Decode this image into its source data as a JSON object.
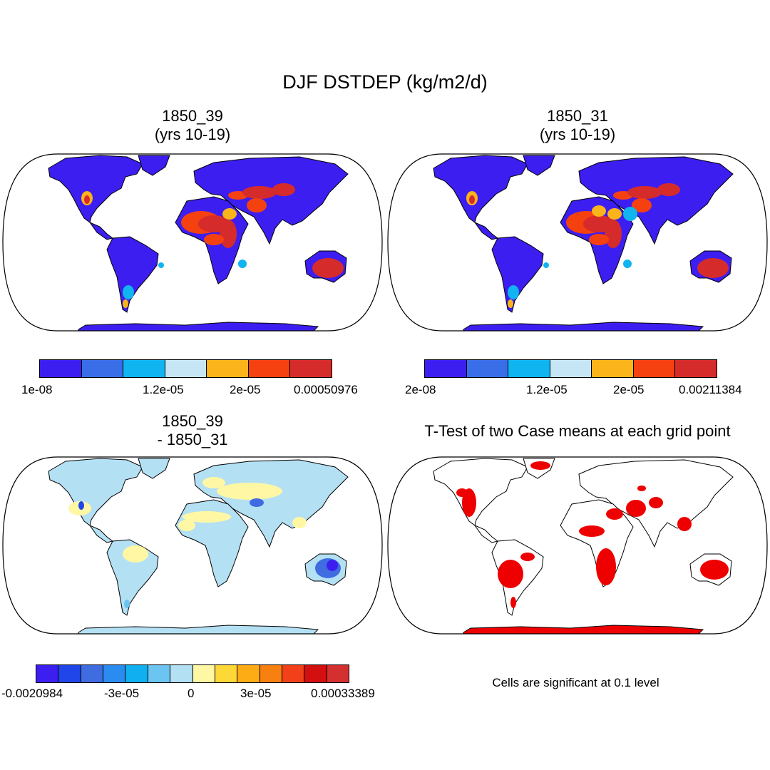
{
  "figure": {
    "title": "DJF DSTDEP (kg/m2/d)"
  },
  "panels": [
    {
      "id": "case1",
      "title_line1": "1850_39",
      "title_line2": "(yrs 10-19)",
      "colorbar": {
        "colors": [
          "#3d1ef0",
          "#3a6ee8",
          "#10b4f0",
          "#c6e6f5",
          "#fbb41a",
          "#f54110",
          "#d62b2b"
        ],
        "labels": [
          "1e-08",
          "1.2e-05",
          "2e-05",
          "0.00050976"
        ]
      }
    },
    {
      "id": "case2",
      "title_line1": "1850_31",
      "title_line2": "(yrs 10-19)",
      "colorbar": {
        "colors": [
          "#3d1ef0",
          "#3a6ee8",
          "#10b4f0",
          "#c6e6f5",
          "#fbb41a",
          "#f54110",
          "#d62b2b"
        ],
        "labels": [
          "2e-08",
          "1.2e-05",
          "2e-05",
          "0.00211384"
        ]
      }
    },
    {
      "id": "diff",
      "title_line1": "1850_39",
      "title_line2": "- 1850_31",
      "colorbar": {
        "colors": [
          "#3d1ef0",
          "#2045e8",
          "#3f6ce0",
          "#2a8cf0",
          "#10b0f0",
          "#6cc4f0",
          "#b4e0f3",
          "#fff7a4",
          "#fdd836",
          "#fdac16",
          "#f78010",
          "#f2401a",
          "#d40f0f",
          "#d53030"
        ],
        "labels": [
          "-0.0020984",
          "-3e-05",
          "0",
          "3e-05",
          "0.00033389"
        ]
      }
    },
    {
      "id": "ttest",
      "title_line1": "T-Test of two Case means at each grid point",
      "footer": "Cells are significant at 0.1 level",
      "significant_color": "#ee0000"
    }
  ]
}
